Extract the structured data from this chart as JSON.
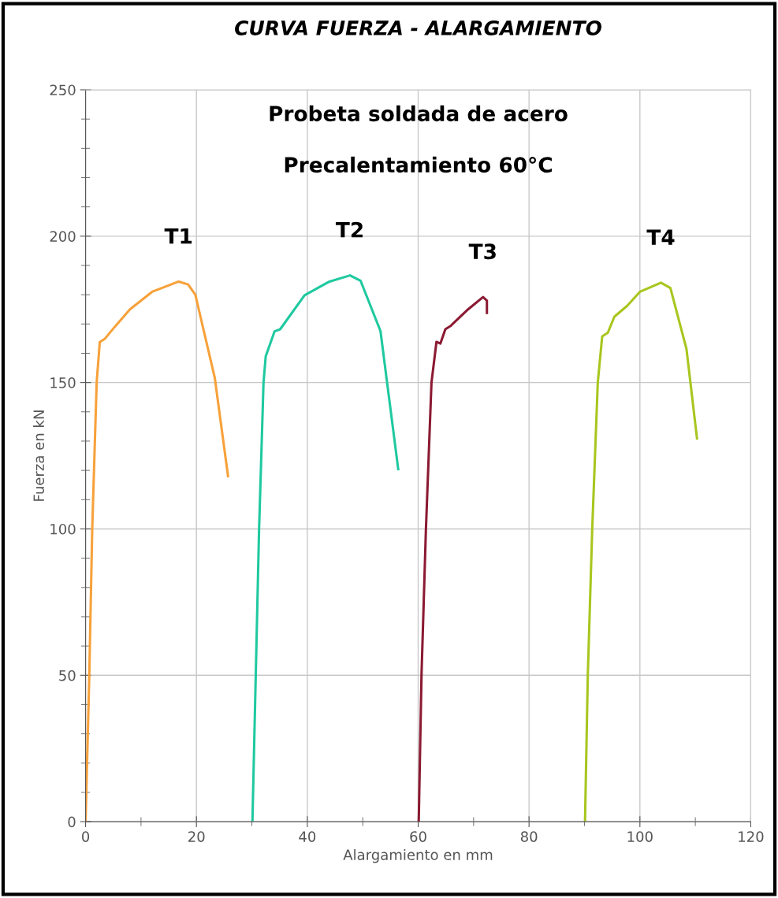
{
  "chart_data": {
    "type": "line",
    "title": "CURVA FUERZA - ALARGAMIENTO",
    "annotations": [
      "Probeta soldada de acero",
      "Precalentamiento 60°C"
    ],
    "xlabel": "Alargamiento en mm",
    "ylabel": "Fuerza en kN",
    "xlim": [
      0,
      120
    ],
    "ylim": [
      0,
      250
    ],
    "xticks": [
      0,
      {
        "value": 10,
        "label": null
      },
      20,
      {
        "value": 30,
        "label": null
      },
      40,
      {
        "value": 50,
        "label": null
      },
      60,
      {
        "value": 70,
        "label": null
      },
      80,
      {
        "value": 90,
        "label": null
      },
      100,
      {
        "value": 110,
        "label": null
      },
      120
    ],
    "yticks": [
      0,
      {
        "value": 10,
        "label": null
      },
      {
        "value": 20,
        "label": null
      },
      {
        "value": 30,
        "label": null
      },
      {
        "value": 40,
        "label": null
      },
      50,
      {
        "value": 60,
        "label": null
      },
      {
        "value": 70,
        "label": null
      },
      {
        "value": 80,
        "label": null
      },
      {
        "value": 90,
        "label": null
      },
      100,
      {
        "value": 110,
        "label": null
      },
      {
        "value": 120,
        "label": null
      },
      {
        "value": 130,
        "label": null
      },
      {
        "value": 140,
        "label": null
      },
      150,
      {
        "value": 160,
        "label": null
      },
      {
        "value": 170,
        "label": null
      },
      {
        "value": 180,
        "label": null
      },
      {
        "value": 190,
        "label": null
      },
      200,
      {
        "value": 210,
        "label": null
      },
      {
        "value": 220,
        "label": null
      },
      {
        "value": 230,
        "label": null
      },
      {
        "value": 240,
        "label": null
      },
      250
    ],
    "grid": true,
    "marker": "none",
    "line_style": "solid",
    "series": [
      {
        "name": "T1",
        "color": "#f7a13a",
        "x": [
          0,
          0.67,
          1.2,
          2.0,
          2.56,
          3.5,
          5.2,
          8,
          12,
          16.8,
          18.5,
          19.8,
          23.3,
          25.7
        ],
        "values": [
          0,
          50,
          100,
          150,
          163.8,
          165,
          168.9,
          175,
          181,
          184.5,
          183.5,
          180,
          151.7,
          118
        ]
      },
      {
        "name": "T2",
        "color": "#1fc9a0",
        "x": [
          30.1,
          30.7,
          31.3,
          32.1,
          32.5,
          34.1,
          35.1,
          39.5,
          44,
          47.7,
          49.6,
          53.2,
          56.4
        ],
        "values": [
          0,
          50,
          100,
          150,
          159,
          167.5,
          168.2,
          179.8,
          184.5,
          186.6,
          184.8,
          167.6,
          120.4
        ]
      },
      {
        "name": "T3",
        "color": "#8b1a32",
        "x": [
          60.1,
          60.6,
          61.4,
          62.4,
          63.3,
          64.0,
          64.9,
          65.9,
          66.2,
          69,
          71.7,
          72.4,
          72.4
        ],
        "values": [
          0,
          50,
          100,
          150,
          163.9,
          163.3,
          168.2,
          169.4,
          170,
          175,
          179.2,
          178,
          173.8
        ]
      },
      {
        "name": "T4",
        "color": "#a8c61e",
        "x": [
          90.1,
          90.6,
          91.4,
          92.4,
          93.2,
          94.2,
          95.4,
          97.7,
          100,
          103.8,
          105.5,
          108.4,
          110.3
        ],
        "values": [
          0,
          50,
          100,
          150,
          165.8,
          167,
          172.5,
          176.2,
          181,
          184.1,
          182.3,
          161.5,
          130.9
        ]
      }
    ]
  }
}
